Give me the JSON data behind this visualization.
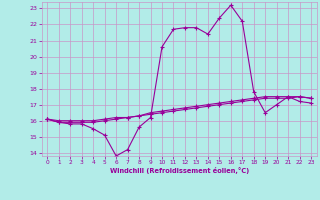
{
  "xlabel": "Windchill (Refroidissement éolien,°C)",
  "background_color": "#b2ece8",
  "grid_color": "#c896c8",
  "line_color": "#990099",
  "xlim": [
    -0.5,
    23.5
  ],
  "ylim": [
    13.8,
    23.4
  ],
  "yticks": [
    14,
    15,
    16,
    17,
    18,
    19,
    20,
    21,
    22,
    23
  ],
  "xticks": [
    0,
    1,
    2,
    3,
    4,
    5,
    6,
    7,
    8,
    9,
    10,
    11,
    12,
    13,
    14,
    15,
    16,
    17,
    18,
    19,
    20,
    21,
    22,
    23
  ],
  "series1_x": [
    0,
    1,
    2,
    3,
    4,
    5,
    6,
    7,
    8,
    9,
    10,
    11,
    12,
    13,
    14,
    15,
    16,
    17,
    18,
    19,
    20,
    21,
    22,
    23
  ],
  "series1_y": [
    16.1,
    15.9,
    15.8,
    15.8,
    15.5,
    15.1,
    13.8,
    14.2,
    15.6,
    16.2,
    20.6,
    21.7,
    21.8,
    21.8,
    21.4,
    22.4,
    23.2,
    22.2,
    17.8,
    16.5,
    17.0,
    17.5,
    17.2,
    17.1
  ],
  "series2_x": [
    0,
    1,
    2,
    3,
    4,
    5,
    6,
    7,
    8,
    9,
    10,
    11,
    12,
    13,
    14,
    15,
    16,
    17,
    18,
    19,
    20,
    21,
    22,
    23
  ],
  "series2_y": [
    16.1,
    15.9,
    15.9,
    15.9,
    15.9,
    16.0,
    16.1,
    16.2,
    16.3,
    16.4,
    16.5,
    16.6,
    16.7,
    16.8,
    16.9,
    17.0,
    17.1,
    17.2,
    17.3,
    17.4,
    17.4,
    17.4,
    17.5,
    17.4
  ],
  "series3_x": [
    0,
    1,
    2,
    3,
    4,
    5,
    6,
    7,
    8,
    9,
    10,
    11,
    12,
    13,
    14,
    15,
    16,
    17,
    18,
    19,
    20,
    21,
    22,
    23
  ],
  "series3_y": [
    16.1,
    16.0,
    16.0,
    16.0,
    16.0,
    16.1,
    16.2,
    16.2,
    16.3,
    16.5,
    16.6,
    16.7,
    16.8,
    16.9,
    17.0,
    17.1,
    17.2,
    17.3,
    17.4,
    17.5,
    17.5,
    17.5,
    17.5,
    17.4
  ]
}
